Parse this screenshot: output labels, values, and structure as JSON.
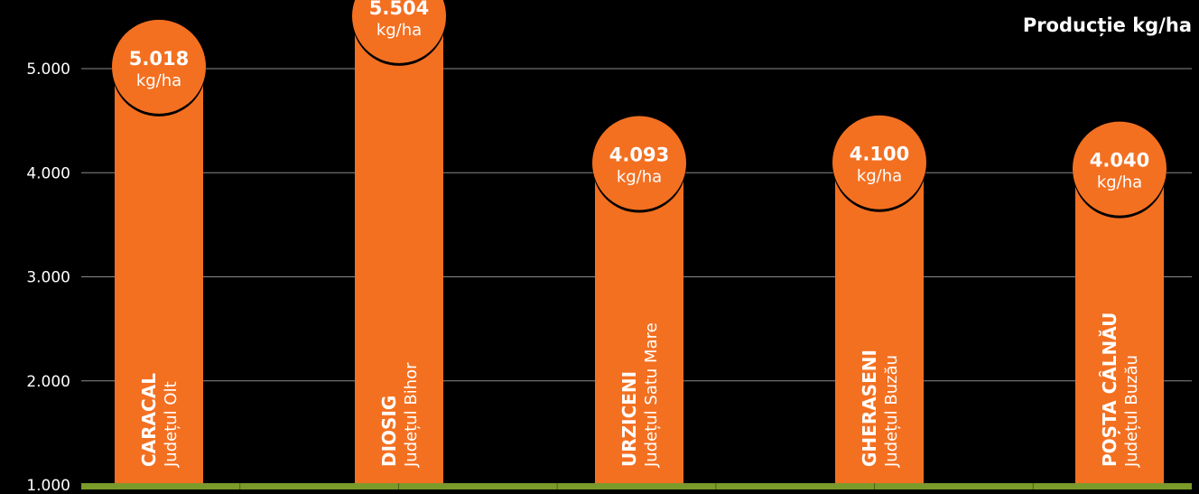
{
  "chart_data": {
    "type": "bar",
    "title": "Producție kg/ha",
    "ylim": [
      1000,
      5500
    ],
    "yticks": [
      "1.000",
      "2.000",
      "3.000",
      "4.000",
      "5.000"
    ],
    "ytick_values": [
      1000,
      2000,
      3000,
      4000,
      5000
    ],
    "grid": true,
    "bar_color": "#f37021",
    "baseline_color": "#7a9a2a",
    "background": "#000000",
    "value_unit": "kg/ha",
    "bars": [
      {
        "name": "CARACAL",
        "county": "Județul Olt",
        "value": 5018,
        "label": "5.018"
      },
      {
        "name": "DIOSIG",
        "county": "Județul Bihor",
        "value": 5504,
        "label": "5.504"
      },
      {
        "name": "URZICENI",
        "county": "Județul Satu Mare",
        "value": 4093,
        "label": "4.093"
      },
      {
        "name": "GHERASENI",
        "county": "Județul Buzău",
        "value": 4100,
        "label": "4.100"
      },
      {
        "name": "POȘTA CÂLNĂU",
        "county": "Județul Buzău",
        "value": 4040,
        "label": "4.040"
      }
    ]
  }
}
